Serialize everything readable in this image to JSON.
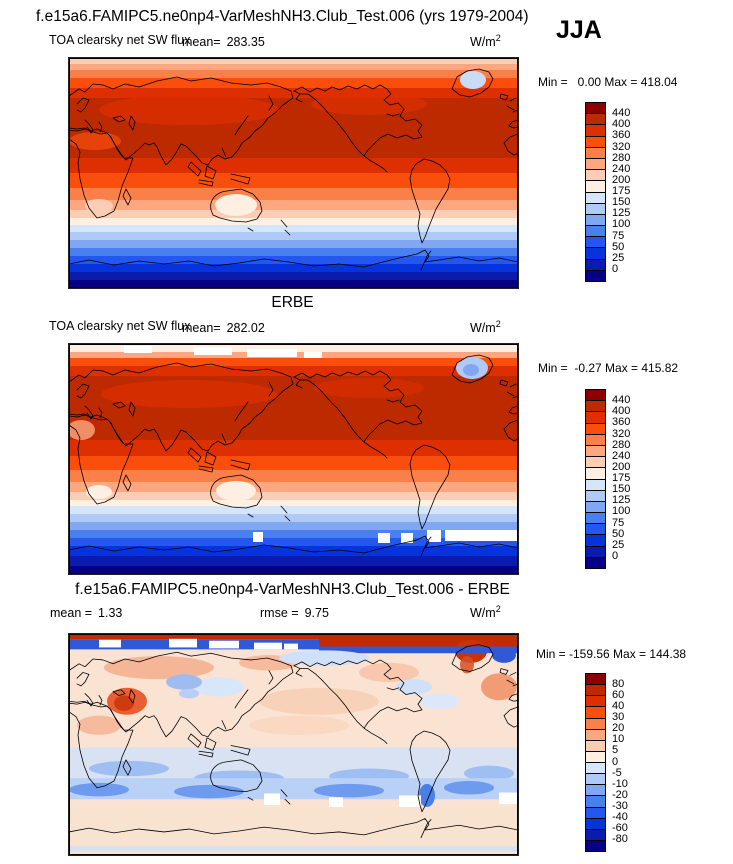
{
  "header": {
    "title": "f.e15a6.FAMIPC5.ne0np4-VarMeshNH3.Club_Test.006 (yrs 1979-2004)",
    "season": "JJA"
  },
  "panels": [
    {
      "variable": "TOA clearsky net SW flux",
      "stats": [
        {
          "label": "mean=",
          "value": "283.35"
        }
      ],
      "units_base": "W/m",
      "units_exp": "2",
      "minmax": "Min =   0.00 Max = 418.04"
    },
    {
      "title": "ERBE",
      "variable": "TOA clearsky net SW flux",
      "stats": [
        {
          "label": "mean=",
          "value": "282.02"
        }
      ],
      "units_base": "W/m",
      "units_exp": "2",
      "minmax": "Min =  -0.27 Max = 415.82"
    },
    {
      "title": "f.e15a6.FAMIPC5.ne0np4-VarMeshNH3.Club_Test.006 - ERBE",
      "stats": [
        {
          "label": "mean =",
          "value": "1.33"
        },
        {
          "label": "rmse =",
          "value": "9.75"
        }
      ],
      "units_base": "W/m",
      "units_exp": "2",
      "minmax": "Min = -159.56 Max = 144.38"
    }
  ],
  "palette_low_to_high": [
    "#060084",
    "#0A1BAE",
    "#0733DD",
    "#2357F0",
    "#4A7FF0",
    "#81A7F2",
    "#AFCAF6",
    "#D6E6FA",
    "#FDEFE2",
    "#FBCDB5",
    "#FCA77F",
    "#FB7F48",
    "#F94E0C",
    "#DE2F00",
    "#BD2A00",
    "#8B0000"
  ],
  "colorbars": [
    {
      "labels": [
        "440",
        "400",
        "360",
        "320",
        "280",
        "240",
        "200",
        "175",
        "150",
        "125",
        "100",
        "75",
        "50",
        "25",
        "0"
      ]
    },
    {
      "labels": [
        "440",
        "400",
        "360",
        "320",
        "280",
        "240",
        "200",
        "175",
        "150",
        "125",
        "100",
        "75",
        "50",
        "25",
        "0"
      ]
    },
    {
      "labels": [
        "80",
        "60",
        "40",
        "30",
        "20",
        "10",
        "5",
        "0",
        "-5",
        "-10",
        "-20",
        "-30",
        "-40",
        "-60",
        "-80"
      ]
    }
  ],
  "chart_data": [
    {
      "type": "heatmap",
      "title": "f.e15a6.FAMIPC5.ne0np4-VarMeshNH3.Club_Test.006 (yrs 1979-2004)",
      "season": "JJA",
      "variable": "TOA clearsky net SW flux",
      "units": "W/m^2",
      "mean": 283.35,
      "min": 0.0,
      "max": 418.04,
      "projection": "cylindrical-equidistant",
      "lon_range": [
        0,
        360
      ],
      "lat_range": [
        -90,
        90
      ],
      "contour_levels": [
        0,
        25,
        50,
        75,
        100,
        125,
        150,
        175,
        200,
        240,
        280,
        320,
        360,
        400,
        440
      ],
      "palette_low_to_high": [
        "#060084",
        "#0A1BAE",
        "#0733DD",
        "#2357F0",
        "#4A7FF0",
        "#81A7F2",
        "#AFCAF6",
        "#D6E6FA",
        "#FDEFE2",
        "#FBCDB5",
        "#FCA77F",
        "#FB7F48",
        "#F94E0C",
        "#DE2F00",
        "#BD2A00",
        "#8B0000"
      ],
      "description": "Zonal banding: high values (dark red, >400) across northern subtropics/midlatitudes, decreasing toward both poles; white transition near 40S; deep blue (<50) toward Antarctica; Greenland interior pale blue."
    },
    {
      "type": "heatmap",
      "title": "ERBE",
      "season": "JJA",
      "variable": "TOA clearsky net SW flux",
      "units": "W/m^2",
      "mean": 282.02,
      "min": -0.27,
      "max": 415.82,
      "projection": "cylindrical-equidistant",
      "lon_range": [
        0,
        360
      ],
      "lat_range": [
        -90,
        90
      ],
      "contour_levels": [
        0,
        25,
        50,
        75,
        100,
        125,
        150,
        175,
        200,
        240,
        280,
        320,
        360,
        400,
        440
      ],
      "palette_low_to_high": [
        "#060084",
        "#0A1BAE",
        "#0733DD",
        "#2357F0",
        "#4A7FF0",
        "#81A7F2",
        "#AFCAF6",
        "#D6E6FA",
        "#FDEFE2",
        "#FBCDB5",
        "#FCA77F",
        "#FB7F48",
        "#F94E0C",
        "#DE2F00",
        "#BD2A00",
        "#8B0000"
      ],
      "description": "Same zonal structure as model; white missing-data blocks at top edge and near 60S; larger pale-blue Greenland ice patch."
    },
    {
      "type": "heatmap",
      "title": "f.e15a6.FAMIPC5.ne0np4-VarMeshNH3.Club_Test.006 - ERBE",
      "season": "JJA",
      "variable": "TOA clearsky net SW flux difference",
      "units": "W/m^2",
      "mean": 1.33,
      "rmse": 9.75,
      "min": -159.56,
      "max": 144.38,
      "projection": "cylindrical-equidistant",
      "lon_range": [
        0,
        360
      ],
      "lat_range": [
        -90,
        90
      ],
      "contour_levels": [
        -80,
        -60,
        -40,
        -30,
        -20,
        -10,
        -5,
        0,
        5,
        10,
        20,
        30,
        40,
        60,
        80
      ],
      "palette_low_to_high": [
        "#060084",
        "#0A1BAE",
        "#0733DD",
        "#2357F0",
        "#4A7FF0",
        "#81A7F2",
        "#AFCAF6",
        "#D6E6FA",
        "#FDEFE2",
        "#FBCDB5",
        "#FCA77F",
        "#FB7F48",
        "#F94E0C",
        "#DE2F00",
        "#BD2A00",
        "#8B0000"
      ],
      "description": "Mostly pale peach (small positive bias); strong positive (dark red) stripe along northern edge and over Greenland; strong negative (dark blue) band along Arctic coasts; negative (blue) band over Southern Ocean 45S-65S; scattered red bias over Arabia/NE Africa."
    }
  ]
}
